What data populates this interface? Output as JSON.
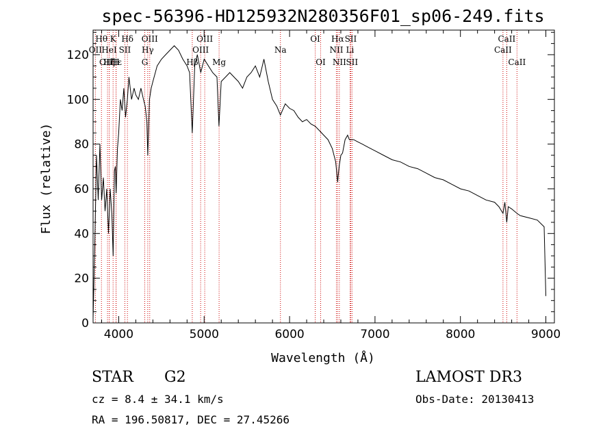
{
  "chart_data": {
    "type": "line",
    "title": "spec-56396-HD125932N280356F01_sp06-249.fits",
    "xlabel": "Wavelength (Å)",
    "ylabel": "Flux (relative)",
    "xlim": [
      3700,
      9100
    ],
    "ylim": [
      0,
      131
    ],
    "x_ticks": [
      4000,
      5000,
      6000,
      7000,
      8000,
      9000
    ],
    "y_ticks": [
      0,
      20,
      40,
      60,
      80,
      100,
      120
    ],
    "line_color": "#000000",
    "marker_color": "#cc0000",
    "series": [
      {
        "name": "flux",
        "x": [
          3700,
          3720,
          3740,
          3760,
          3780,
          3800,
          3820,
          3840,
          3860,
          3880,
          3900,
          3920,
          3935,
          3950,
          3960,
          3970,
          3985,
          4000,
          4020,
          4040,
          4060,
          4080,
          4101,
          4120,
          4150,
          4180,
          4200,
          4230,
          4260,
          4290,
          4310,
          4330,
          4340,
          4360,
          4380,
          4400,
          4450,
          4500,
          4550,
          4600,
          4650,
          4700,
          4750,
          4800,
          4830,
          4861,
          4890,
          4920,
          4960,
          5000,
          5050,
          5100,
          5150,
          5173,
          5200,
          5250,
          5300,
          5350,
          5400,
          5450,
          5500,
          5550,
          5600,
          5650,
          5700,
          5750,
          5800,
          5850,
          5893,
          5950,
          6000,
          6050,
          6100,
          6150,
          6200,
          6250,
          6300,
          6350,
          6400,
          6450,
          6500,
          6540,
          6563,
          6580,
          6600,
          6620,
          6650,
          6680,
          6700,
          6750,
          6800,
          6850,
          6900,
          6950,
          7000,
          7100,
          7200,
          7300,
          7400,
          7500,
          7600,
          7700,
          7800,
          7900,
          8000,
          8100,
          8200,
          8300,
          8400,
          8450,
          8498,
          8520,
          8542,
          8560,
          8600,
          8662,
          8700,
          8800,
          8900,
          8980,
          9000
        ],
        "y": [
          2,
          35,
          75,
          55,
          80,
          55,
          65,
          50,
          60,
          40,
          60,
          48,
          30,
          68,
          70,
          58,
          78,
          85,
          100,
          95,
          105,
          92,
          100,
          110,
          100,
          105,
          102,
          100,
          105,
          100,
          97,
          90,
          75,
          100,
          105,
          108,
          115,
          118,
          120,
          122,
          124,
          122,
          118,
          115,
          112,
          85,
          115,
          120,
          112,
          118,
          115,
          112,
          110,
          88,
          108,
          110,
          112,
          110,
          108,
          105,
          110,
          112,
          115,
          110,
          118,
          108,
          100,
          97,
          93,
          98,
          96,
          95,
          92,
          90,
          91,
          89,
          88,
          86,
          84,
          82,
          78,
          72,
          63,
          70,
          75,
          76,
          82,
          84,
          82,
          82,
          81,
          80,
          79,
          78,
          77,
          75,
          73,
          72,
          70,
          69,
          67,
          65,
          64,
          62,
          60,
          59,
          57,
          55,
          54,
          52,
          49,
          54,
          45,
          52,
          51,
          49,
          48,
          47,
          46,
          43,
          12
        ]
      }
    ],
    "line_markers": [
      {
        "name": "Hθ",
        "wavelength": 3798,
        "row": 1
      },
      {
        "name": "OII",
        "wavelength": 3727,
        "row": 2
      },
      {
        "name": "OIII",
        "wavelength": 3869,
        "row": 3
      },
      {
        "name": "Hζ",
        "wavelength": 3889,
        "row": 3
      },
      {
        "name": "K",
        "wavelength": 3934,
        "row": 1
      },
      {
        "name": "HeI",
        "wavelength": 3889,
        "row": 2
      },
      {
        "name": "Hε",
        "wavelength": 3970,
        "row": 3
      },
      {
        "name": "H",
        "wavelength": 3968,
        "row": 3
      },
      {
        "name": "SII",
        "wavelength": 4072,
        "row": 2
      },
      {
        "name": "Hδ",
        "wavelength": 4102,
        "row": 1
      },
      {
        "name": "OIII",
        "wavelength": 4363,
        "row": 1
      },
      {
        "name": "Hγ",
        "wavelength": 4340,
        "row": 2
      },
      {
        "name": "G",
        "wavelength": 4305,
        "row": 3
      },
      {
        "name": "OIII",
        "wavelength": 5007,
        "row": 1
      },
      {
        "name": "OIII",
        "wavelength": 4959,
        "row": 2
      },
      {
        "name": "Hβ",
        "wavelength": 4861,
        "row": 3
      },
      {
        "name": "Mg",
        "wavelength": 5175,
        "row": 3
      },
      {
        "name": "Na",
        "wavelength": 5893,
        "row": 2
      },
      {
        "name": "OI",
        "wavelength": 6300,
        "row": 1
      },
      {
        "name": "OI",
        "wavelength": 6364,
        "row": 3
      },
      {
        "name": "Hα",
        "wavelength": 6563,
        "row": 1
      },
      {
        "name": "SII",
        "wavelength": 6716,
        "row": 1
      },
      {
        "name": "NII",
        "wavelength": 6548,
        "row": 2
      },
      {
        "name": "Li",
        "wavelength": 6708,
        "row": 2
      },
      {
        "name": "NII",
        "wavelength": 6583,
        "row": 3
      },
      {
        "name": "SII",
        "wavelength": 6731,
        "row": 3
      },
      {
        "name": "CaII",
        "wavelength": 8542,
        "row": 1
      },
      {
        "name": "CaII",
        "wavelength": 8498,
        "row": 2
      },
      {
        "name": "CaII",
        "wavelength": 8662,
        "row": 3
      }
    ]
  },
  "info": {
    "object_class": "STAR",
    "subclass": "G2",
    "survey": "LAMOST DR3",
    "redshift": "cz = 8.4 ± 34.1 km/s",
    "obs_date": "Obs-Date: 20130413",
    "coords": "RA = 196.50817, DEC =  27.45266"
  }
}
